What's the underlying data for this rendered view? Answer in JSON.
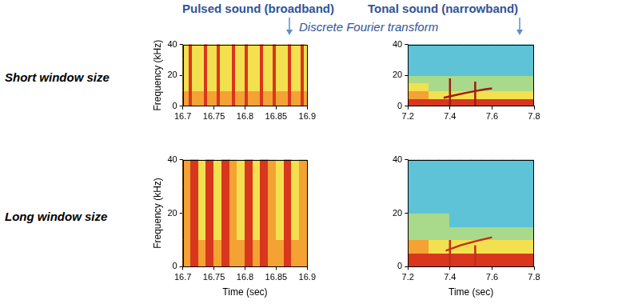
{
  "figure": {
    "column_titles": [
      "Pulsed sound (broadband)",
      "Tonal sound (narrowband)"
    ],
    "annotation": "Discrete Fourier transform",
    "row_labels": [
      "Short window size",
      "Long window size"
    ]
  },
  "chart_data": [
    {
      "type": "heatmap",
      "ylabel": "Frequency (kHz)",
      "xlim": [
        16.7,
        16.9
      ],
      "xticks": [
        16.7,
        16.75,
        16.8,
        16.85,
        16.9
      ],
      "ylim": [
        0,
        40
      ],
      "yticks": [
        0,
        20,
        40
      ],
      "grid": false,
      "x_bins": [
        16.7,
        16.705,
        16.71,
        16.715,
        16.72,
        16.725,
        16.73,
        16.735,
        16.74,
        16.745,
        16.75,
        16.755,
        16.76,
        16.765,
        16.77,
        16.775,
        16.78,
        16.785,
        16.79,
        16.795,
        16.8,
        16.805,
        16.81,
        16.815,
        16.82,
        16.825,
        16.83,
        16.835,
        16.84,
        16.845,
        16.85,
        16.855,
        16.86,
        16.865,
        16.87,
        16.875,
        16.88,
        16.885,
        16.89,
        16.895,
        16.9
      ],
      "y_bins": [
        0,
        10,
        20,
        30,
        40
      ],
      "cells": [
        [
          3,
          3,
          4,
          3,
          3,
          3,
          3,
          4,
          3,
          3,
          3,
          4,
          3,
          3,
          3,
          3,
          4,
          3,
          3,
          3,
          4,
          3,
          3,
          3,
          3,
          4,
          3,
          3,
          3,
          4,
          3,
          3,
          3,
          3,
          4,
          3,
          3,
          3,
          4,
          3
        ],
        [
          2,
          2,
          4,
          2,
          2,
          2,
          2,
          4,
          2,
          2,
          2,
          4,
          2,
          2,
          2,
          2,
          4,
          2,
          2,
          2,
          4,
          2,
          2,
          2,
          2,
          4,
          2,
          2,
          2,
          4,
          2,
          2,
          2,
          2,
          4,
          2,
          2,
          2,
          4,
          2
        ],
        [
          2,
          2,
          4,
          2,
          2,
          2,
          2,
          4,
          2,
          2,
          2,
          4,
          2,
          2,
          2,
          2,
          4,
          2,
          2,
          2,
          4,
          2,
          2,
          2,
          2,
          4,
          2,
          2,
          2,
          4,
          2,
          2,
          2,
          2,
          4,
          2,
          2,
          2,
          4,
          2
        ],
        [
          2,
          2,
          4,
          2,
          2,
          2,
          2,
          4,
          2,
          2,
          2,
          4,
          2,
          2,
          2,
          2,
          4,
          2,
          2,
          2,
          4,
          2,
          2,
          2,
          2,
          4,
          2,
          2,
          2,
          4,
          2,
          2,
          2,
          2,
          4,
          2,
          2,
          2,
          4,
          2
        ]
      ],
      "series": []
    },
    {
      "type": "heatmap",
      "xlim": [
        7.2,
        7.8
      ],
      "xticks": [
        7.2,
        7.4,
        7.6,
        7.8
      ],
      "ylim": [
        0,
        40
      ],
      "yticks": [
        0,
        20,
        40
      ],
      "grid": false,
      "x_bins": [
        7.2,
        7.25,
        7.3,
        7.35,
        7.4,
        7.45,
        7.5,
        7.55,
        7.6,
        7.65,
        7.7,
        7.75,
        7.8
      ],
      "y_bins": [
        0,
        5,
        10,
        15,
        20,
        25,
        30,
        35,
        40
      ],
      "cells": [
        [
          4,
          4,
          4,
          4,
          4,
          4,
          4,
          4,
          4,
          4,
          4,
          4
        ],
        [
          3,
          3,
          2,
          2,
          2,
          2,
          2,
          2,
          2,
          2,
          2,
          2
        ],
        [
          2,
          2,
          1,
          1,
          1,
          1,
          1,
          1,
          1,
          1,
          1,
          1
        ],
        [
          1,
          1,
          1,
          1,
          1,
          1,
          1,
          1,
          1,
          1,
          1,
          1
        ],
        [
          0,
          0,
          0,
          0,
          0,
          0,
          0,
          0,
          0,
          0,
          0,
          0
        ],
        [
          0,
          0,
          0,
          0,
          0,
          0,
          0,
          0,
          0,
          0,
          0,
          0
        ],
        [
          0,
          0,
          0,
          0,
          0,
          0,
          0,
          0,
          0,
          0,
          0,
          0
        ],
        [
          0,
          0,
          0,
          0,
          0,
          0,
          0,
          0,
          0,
          0,
          0,
          0
        ]
      ],
      "series": [
        {
          "color": "#a01c10",
          "x": [
            7.37,
            7.42,
            7.47,
            7.52,
            7.57,
            7.6
          ],
          "values": [
            5.5,
            7,
            8.5,
            9.8,
            11,
            11.5
          ]
        },
        {
          "color": "#a01c10",
          "x": [
            7.4,
            7.4
          ],
          "values": [
            0,
            18
          ]
        },
        {
          "color": "#a01c10",
          "x": [
            7.52,
            7.52
          ],
          "values": [
            0,
            16
          ]
        }
      ]
    },
    {
      "type": "heatmap",
      "xlabel": "Time (sec)",
      "ylabel": "Frequency (kHz)",
      "xlim": [
        16.7,
        16.9
      ],
      "xticks": [
        16.7,
        16.75,
        16.8,
        16.85,
        16.9
      ],
      "ylim": [
        0,
        40
      ],
      "yticks": [
        0,
        20,
        40
      ],
      "grid": false,
      "x_bins": [
        16.7,
        16.7125,
        16.725,
        16.7375,
        16.75,
        16.7625,
        16.775,
        16.7875,
        16.8,
        16.8125,
        16.825,
        16.8375,
        16.85,
        16.8625,
        16.875,
        16.8875,
        16.9
      ],
      "y_bins": [
        0,
        10,
        20,
        30,
        40
      ],
      "cells": [
        [
          3,
          4,
          3,
          4,
          3,
          4,
          3,
          3,
          4,
          3,
          4,
          3,
          3,
          4,
          3,
          3
        ],
        [
          3,
          4,
          2,
          4,
          2,
          4,
          3,
          2,
          4,
          2,
          4,
          3,
          2,
          4,
          2,
          3
        ],
        [
          3,
          4,
          2,
          4,
          2,
          4,
          3,
          2,
          4,
          2,
          4,
          3,
          2,
          4,
          2,
          3
        ],
        [
          3,
          4,
          2,
          4,
          2,
          4,
          3,
          2,
          4,
          2,
          4,
          3,
          2,
          4,
          2,
          3
        ]
      ],
      "series": []
    },
    {
      "type": "heatmap",
      "xlabel": "Time (sec)",
      "xlim": [
        7.2,
        7.8
      ],
      "xticks": [
        7.2,
        7.4,
        7.6,
        7.8
      ],
      "ylim": [
        0,
        40
      ],
      "yticks": [
        0,
        20,
        40
      ],
      "grid": false,
      "x_bins": [
        7.2,
        7.25,
        7.3,
        7.35,
        7.4,
        7.45,
        7.5,
        7.55,
        7.6,
        7.65,
        7.7,
        7.75,
        7.8
      ],
      "y_bins": [
        0,
        5,
        10,
        15,
        20,
        25,
        30,
        35,
        40
      ],
      "cells": [
        [
          4,
          4,
          4,
          4,
          4,
          4,
          4,
          4,
          4,
          4,
          4,
          4
        ],
        [
          3,
          3,
          2,
          2,
          2,
          2,
          2,
          2,
          2,
          2,
          2,
          2
        ],
        [
          1,
          1,
          1,
          1,
          1,
          1,
          1,
          1,
          1,
          1,
          1,
          1
        ],
        [
          1,
          1,
          1,
          1,
          0,
          0,
          0,
          0,
          0,
          0,
          0,
          0
        ],
        [
          0,
          0,
          0,
          0,
          0,
          0,
          0,
          0,
          0,
          0,
          0,
          0
        ],
        [
          0,
          0,
          0,
          0,
          0,
          0,
          0,
          0,
          0,
          0,
          0,
          0
        ],
        [
          0,
          0,
          0,
          0,
          0,
          0,
          0,
          0,
          0,
          0,
          0,
          0
        ],
        [
          0,
          0,
          0,
          0,
          0,
          0,
          0,
          0,
          0,
          0,
          0,
          0
        ]
      ],
      "series": [
        {
          "color": "#c0301a",
          "x": [
            7.38,
            7.45,
            7.52,
            7.6
          ],
          "values": [
            6,
            8,
            9.5,
            11
          ]
        },
        {
          "color": "#c0301a",
          "x": [
            7.4,
            7.4
          ],
          "values": [
            0,
            10
          ]
        },
        {
          "color": "#c0301a",
          "x": [
            7.52,
            7.52
          ],
          "values": [
            0,
            8
          ]
        }
      ]
    }
  ]
}
